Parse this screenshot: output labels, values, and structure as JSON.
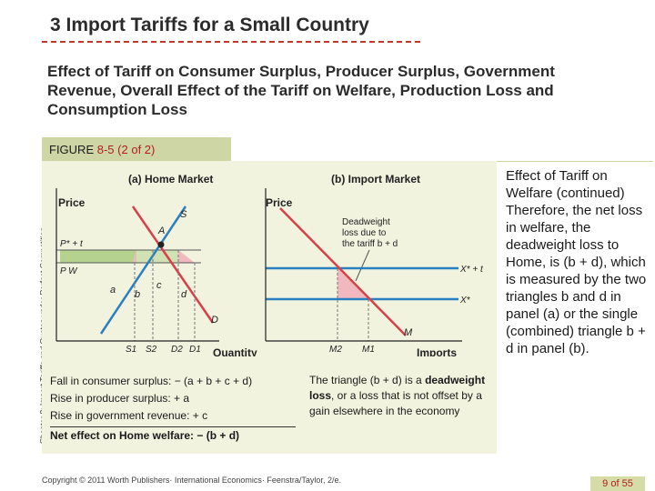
{
  "slide": {
    "title": "3  Import Tariffs for a Small Country",
    "subtitle": "Effect of Tariff on Consumer Surplus, Producer Surplus, Government Revenue, Overall Effect of the Tariff on Welfare, Production Loss and Consumption Loss",
    "side_label": "Chapter 8:  Import Tariffs and Quotas under Perfect Competition"
  },
  "figure": {
    "label": "FIGURE",
    "number": "8-5",
    "part": "(2 of 2)"
  },
  "panel_a": {
    "title": "(a) Home Market",
    "y_axis": "Price",
    "x_axis": "Quantity",
    "supply": "S",
    "demand": "D",
    "point_a": "A",
    "price_high": "P* + t",
    "price_low": "P W",
    "area_a": "a",
    "area_b": "b",
    "area_c": "c",
    "area_d": "d",
    "x_ticks": [
      "S1",
      "S2",
      "D2",
      "D1"
    ]
  },
  "panel_b": {
    "title": "(b) Import Market",
    "y_axis": "Price",
    "x_axis": "Imports",
    "annotation_line1": "Deadweight",
    "annotation_line2": "loss due to",
    "annotation_line3": "the tariff b + d",
    "line_high": "X* + t",
    "line_low": "X*",
    "demand": "M",
    "x_ticks": [
      "M2",
      "M1"
    ]
  },
  "notes_left": {
    "line1": "Fall in consumer surplus: − (a + b + c + d)",
    "line2": "Rise in producer surplus: + a",
    "line3": "Rise in government revenue: + c",
    "line4": "Net effect on Home welfare: − (b + d)"
  },
  "notes_right": {
    "part1": "The triangle (b + d) is a",
    "part2": "deadweight loss",
    "part3": ", or a loss that is not offset by a gain elsewhere in the economy"
  },
  "side_text": {
    "heading": "Effect of Tariff on Welfare (continued)",
    "body": "Therefore, the net loss in welfare, the deadweight loss to Home, is (b + d), which is measured by the two triangles b and d in panel (a) or the single (combined) triangle b + d in panel (b)."
  },
  "footer": "Copyright © 2011 Worth Publishers· International Economics· Feenstra/Taylor, 2/e.",
  "page": "9 of 55",
  "colors": {
    "accent_red": "#b11e1e",
    "figure_bar": "#cfd6a6",
    "figure_bg": "#f1f3de",
    "curve_blue": "#2a7fc1",
    "curve_red": "#d6404a",
    "area_pink": "#f2b8c0",
    "area_green": "#b5d28f"
  }
}
